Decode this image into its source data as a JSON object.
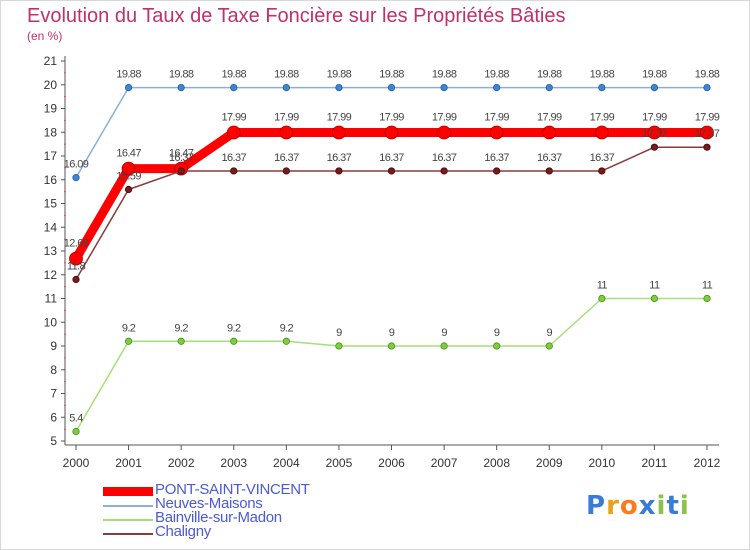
{
  "chart_data": {
    "type": "line",
    "title": "Evolution du Taux de Taxe Foncière sur les Propriétés Bâties",
    "unit_label": "(en %)",
    "xlabel": "",
    "ylabel": "(en %)",
    "categories": [
      "2000",
      "2001",
      "2002",
      "2003",
      "2004",
      "2005",
      "2006",
      "2007",
      "2008",
      "2009",
      "2010",
      "2011",
      "2012"
    ],
    "ylim": [
      5,
      21
    ],
    "yticks": [
      5,
      6,
      7,
      8,
      9,
      10,
      11,
      12,
      13,
      14,
      15,
      16,
      17,
      18,
      19,
      20,
      21
    ],
    "grid": false,
    "legend_position": "bottom-left",
    "series": [
      {
        "name": "PONT-SAINT-VINCENT",
        "color": "#ff0000",
        "values": [
          12.68,
          16.47,
          16.47,
          17.99,
          17.99,
          17.99,
          17.99,
          17.99,
          17.99,
          17.99,
          17.99,
          17.99,
          17.99
        ],
        "labels": [
          "12.68",
          "16.47",
          "16.47",
          "17.99",
          "17.99",
          "17.99",
          "17.99",
          "17.99",
          "17.99",
          "17.99",
          "17.99",
          "17.99",
          "17.99"
        ]
      },
      {
        "name": "Neuves-Maisons",
        "color": "#8ab0d8",
        "values": [
          16.09,
          19.88,
          19.88,
          19.88,
          19.88,
          19.88,
          19.88,
          19.88,
          19.88,
          19.88,
          19.88,
          19.88,
          19.88
        ],
        "labels": [
          "16.09",
          "19.88",
          "19.88",
          "19.88",
          "19.88",
          "19.88",
          "19.88",
          "19.88",
          "19.88",
          "19.88",
          "19.88",
          "19.88",
          "19.88"
        ]
      },
      {
        "name": "Bainville-sur-Madon",
        "color": "#a6df78",
        "values": [
          5.4,
          9.2,
          9.2,
          9.2,
          9.2,
          9.0,
          9.0,
          9.0,
          9.0,
          9.0,
          11.0,
          11.0,
          11.0
        ],
        "labels": [
          "5.4",
          "9.2",
          "9.2",
          "9.2",
          "9.2",
          "9",
          "9",
          "9",
          "9",
          "9",
          "11",
          "11",
          "11"
        ]
      },
      {
        "name": "Chaligny",
        "color": "#8a3a3a",
        "values": [
          11.8,
          15.59,
          16.37,
          16.37,
          16.37,
          16.37,
          16.37,
          16.37,
          16.37,
          16.37,
          16.37,
          17.37,
          17.37
        ],
        "labels": [
          "11.8",
          "15.59",
          "16.37",
          "16.37",
          "16.37",
          "16.37",
          "16.37",
          "16.37",
          "16.37",
          "16.37",
          "16.37",
          "17.37",
          "17.37"
        ]
      }
    ]
  },
  "legend": {
    "items": [
      {
        "label": "PONT-SAINT-VINCENT",
        "color": "#ff0000",
        "text_color": "#4a5ad8"
      },
      {
        "label": "Neuves-Maisons",
        "color": "#8ab0d8",
        "text_color": "#4a5ad8"
      },
      {
        "label": "Bainville-sur-Madon",
        "color": "#a6df78",
        "text_color": "#4a5ad8"
      },
      {
        "label": "Chaligny",
        "color": "#8a3a3a",
        "text_color": "#4a5ad8"
      }
    ]
  },
  "logo": {
    "letters": [
      "P",
      "r",
      "o",
      "x",
      "i",
      "t",
      "i"
    ],
    "colors": [
      "#3a7bd5",
      "#e8a11c",
      "#ff7a1a",
      "#3a7bd5",
      "#8bc34a",
      "#3a7bd5",
      "#8bc34a"
    ]
  }
}
